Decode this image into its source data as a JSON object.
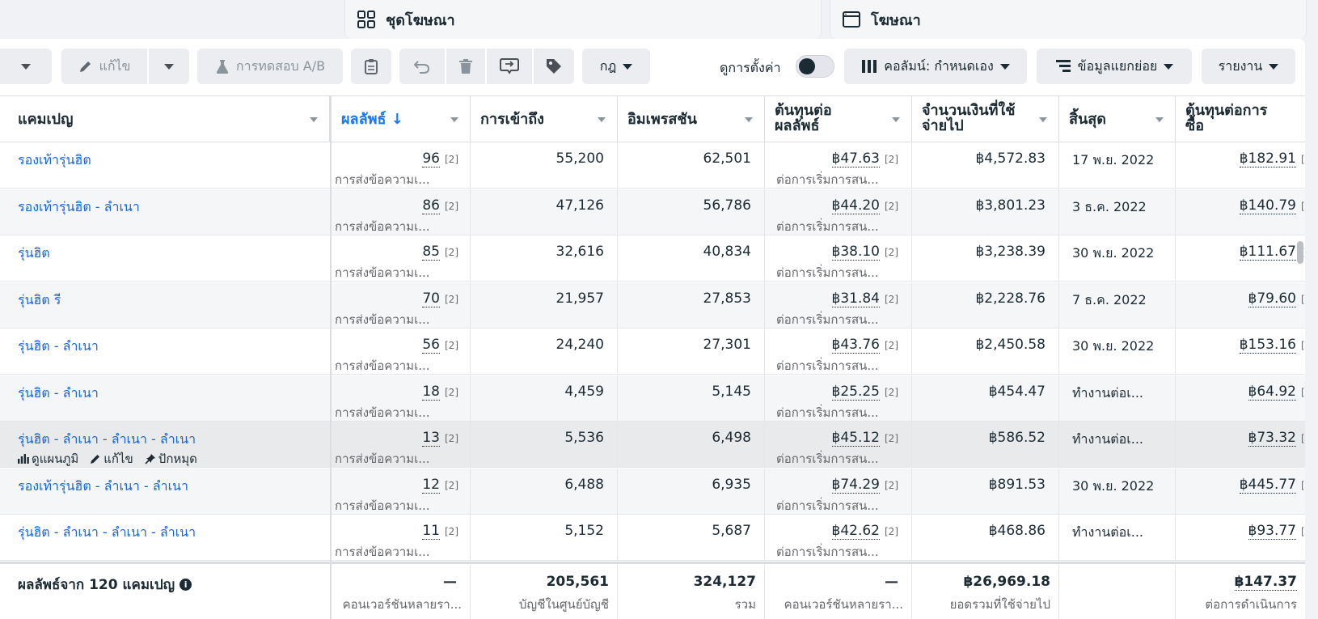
{
  "level_tabs": {
    "adsets_label": "ชุดโฆษณา",
    "ads_label": "โฆษณา"
  },
  "toolbar": {
    "edit_label": "แก้ไข",
    "ab_test_label": "การทดสอบ A/B",
    "rules_label": "กฎ",
    "view_setup_label": "ดูการตั้งค่า",
    "columns_label": "คอลัมน์: กำหนดเอง",
    "breakdown_label": "ข้อมูลแยกย่อย",
    "reports_label": "รายงาน"
  },
  "columns": {
    "campaign": "แคมเปญ",
    "results": "ผลลัพธ์ ↓",
    "reach": "การเข้าถึง",
    "impressions": "อิมเพรสชัน",
    "cost_per_result_1": "ต้นทุนต่อ",
    "cost_per_result_2": "ผลลัพธ์",
    "amount_spent_1": "จำนวนเงินที่ใช้",
    "amount_spent_2": "จ่ายไป",
    "ends": "สิ้นสุด",
    "cost_per_purchase_1": "ต้นทุนต่อการ",
    "cost_per_purchase_2": "ซื้อ"
  },
  "rows": [
    {
      "campaign": "รองเท้ารุ่นฮิต",
      "results": "96",
      "results_sub": "การส่งข้อความเ...",
      "reach": "55,200",
      "impressions": "62,501",
      "cpr": "฿47.63",
      "cpr_sub": "ต่อการเริ่มการสน...",
      "spent": "฿4,572.83",
      "ends": "17 พ.ย. 2022",
      "cpp": "฿182.91"
    },
    {
      "campaign": "รองเท้ารุ่นฮิต - ลำเนา",
      "results": "86",
      "results_sub": "การส่งข้อความเ...",
      "reach": "47,126",
      "impressions": "56,786",
      "cpr": "฿44.20",
      "cpr_sub": "ต่อการเริ่มการสน...",
      "spent": "฿3,801.23",
      "ends": "3 ธ.ค. 2022",
      "cpp": "฿140.79"
    },
    {
      "campaign": "รุ่นฮิต",
      "results": "85",
      "results_sub": "การส่งข้อความเ...",
      "reach": "32,616",
      "impressions": "40,834",
      "cpr": "฿38.10",
      "cpr_sub": "ต่อการเริ่มการสน...",
      "spent": "฿3,238.39",
      "ends": "30 พ.ย. 2022",
      "cpp": "฿111.67"
    },
    {
      "campaign": "รุ่นฮิต รี",
      "results": "70",
      "results_sub": "การส่งข้อความเ...",
      "reach": "21,957",
      "impressions": "27,853",
      "cpr": "฿31.84",
      "cpr_sub": "ต่อการเริ่มการสน...",
      "spent": "฿2,228.76",
      "ends": "7 ธ.ค. 2022",
      "cpp": "฿79.60"
    },
    {
      "campaign": "รุ่นฮิต - ลำเนา",
      "results": "56",
      "results_sub": "การส่งข้อความเ...",
      "reach": "24,240",
      "impressions": "27,301",
      "cpr": "฿43.76",
      "cpr_sub": "ต่อการเริ่มการสน...",
      "spent": "฿2,450.58",
      "ends": "30 พ.ย. 2022",
      "cpp": "฿153.16"
    },
    {
      "campaign": "รุ่นฮิต - ลำเนา",
      "results": "18",
      "results_sub": "การส่งข้อความเ...",
      "reach": "4,459",
      "impressions": "5,145",
      "cpr": "฿25.25",
      "cpr_sub": "ต่อการเริ่มการสน...",
      "spent": "฿454.47",
      "ends": "ทำงานต่อเ...",
      "cpp": "฿64.92"
    },
    {
      "campaign": "รุ่นฮิต - ลำเนา - ลำเนา - ลำเนา",
      "results": "13",
      "results_sub": "การส่งข้อความเ...",
      "reach": "5,536",
      "impressions": "6,498",
      "cpr": "฿45.12",
      "cpr_sub": "ต่อการเริ่มการสน...",
      "spent": "฿586.52",
      "ends": "ทำงานต่อเ...",
      "cpp": "฿73.32"
    },
    {
      "campaign": "รองเท้ารุ่นฮิต - ลำเนา - ลำเนา",
      "results": "12",
      "results_sub": "การส่งข้อความเ...",
      "reach": "6,488",
      "impressions": "6,935",
      "cpr": "฿74.29",
      "cpr_sub": "ต่อการเริ่มการสน...",
      "spent": "฿891.53",
      "ends": "30 พ.ย. 2022",
      "cpp": "฿445.77"
    },
    {
      "campaign": "รุ่นฮิต - ลำเนา - ลำเนา - ลำเนา",
      "results": "11",
      "results_sub": "การส่งข้อความเ...",
      "reach": "5,152",
      "impressions": "5,687",
      "cpr": "฿42.62",
      "cpr_sub": "ต่อการเริ่มการสน...",
      "spent": "฿468.86",
      "ends": "ทำงานต่อเ...",
      "cpp": "฿93.77"
    }
  ],
  "footnote_mark": "[2]",
  "row_actions": {
    "view_chart": "ดูแผนภูมิ",
    "edit": "แก้ไข",
    "pin": "ปักหมุด"
  },
  "summary": {
    "title": "ผลลัพธ์จาก 120 แคมเปญ",
    "results": "—",
    "results_sub": "คอนเวอร์ชันหลายรา...",
    "reach": "205,561",
    "reach_sub": "บัญชีในศูนย์บัญชี",
    "impressions": "324,127",
    "impressions_sub": "รวม",
    "cpr": "—",
    "cpr_sub": "คอนเวอร์ชันหลายรา...",
    "spent": "฿26,969.18",
    "spent_sub": "ยอดรวมที่ใช้จ่ายไป",
    "cpp": "฿147.37",
    "cpp_sub": "ต่อการดำเนินการ"
  },
  "colors": {
    "accent": "#1877f2",
    "link": "#1866d6",
    "text": "#1c2b33",
    "muted": "#65676b"
  }
}
